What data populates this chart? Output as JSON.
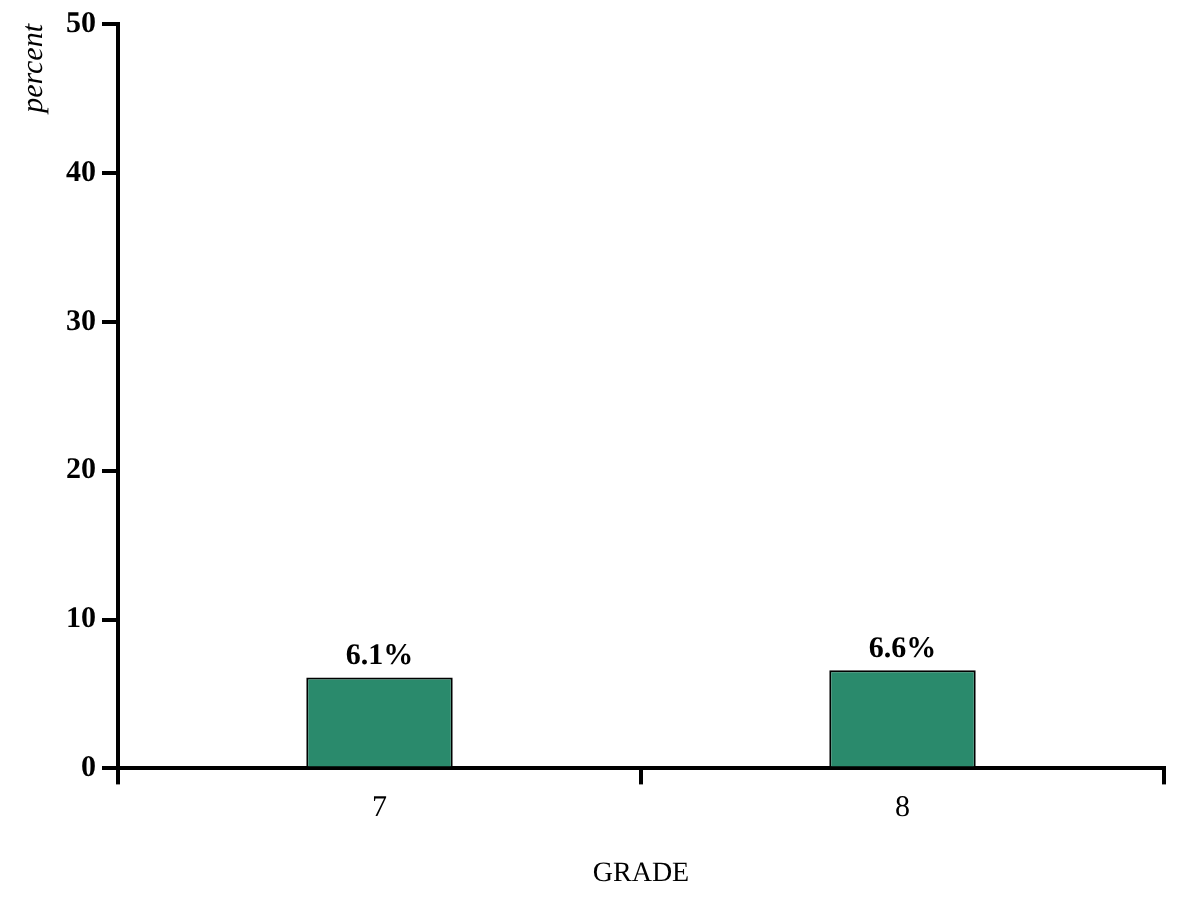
{
  "chart_data": {
    "type": "bar",
    "xlabel": "GRADE",
    "ylabel": "percent",
    "categories": [
      "7",
      "8"
    ],
    "values": [
      6.1,
      6.6
    ],
    "value_labels": [
      "6.1%",
      "6.6%"
    ],
    "color": "#2a8a6c",
    "ylim": [
      0,
      50
    ],
    "yticks": [
      0,
      10,
      20,
      30,
      40,
      50
    ]
  }
}
